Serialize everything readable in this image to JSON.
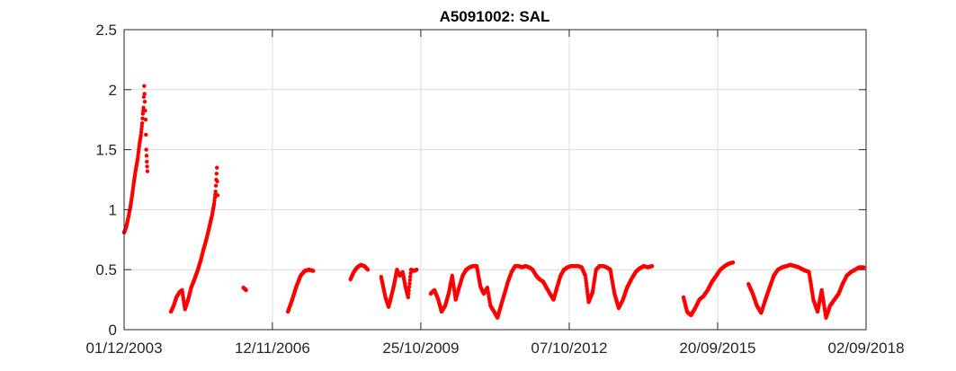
{
  "chart_data": {
    "type": "scatter",
    "title": "A5091002: SAL",
    "xlabel": "",
    "ylabel": "",
    "ylim": [
      0,
      2.5
    ],
    "yticks": [
      0,
      0.5,
      1,
      1.5,
      2,
      2.5
    ],
    "ytick_labels": [
      "0",
      "0.5",
      "1",
      "1.5",
      "2",
      "2.5"
    ],
    "xlim": [
      "2003-12-01",
      "2018-09-02"
    ],
    "xticks": [
      "2003-12-01",
      "2006-11-12",
      "2009-10-25",
      "2012-10-07",
      "2015-09-20",
      "2018-09-02"
    ],
    "xtick_labels": [
      "01/12/2003",
      "12/11/2006",
      "25/10/2009",
      "07/10/2012",
      "20/09/2015",
      "02/09/2018"
    ],
    "grid": true,
    "marker_color": "#ff0000",
    "series": [
      {
        "points": [
          [
            "2003-12-01",
            0.81
          ],
          [
            "2003-12-15",
            0.85
          ],
          [
            "2003-12-29",
            0.92
          ],
          [
            "2004-01-12",
            1.0
          ],
          [
            "2004-01-26",
            1.1
          ],
          [
            "2004-02-09",
            1.22
          ],
          [
            "2004-02-23",
            1.33
          ],
          [
            "2004-03-08",
            1.42
          ],
          [
            "2004-03-22",
            1.55
          ],
          [
            "2004-04-01",
            1.62
          ],
          [
            "2004-04-10",
            1.72
          ],
          [
            "2004-04-15",
            1.8
          ],
          [
            "2004-04-20",
            1.85
          ],
          [
            "2004-04-25",
            2.03
          ],
          [
            "2004-04-29",
            1.9
          ],
          [
            "2004-05-05",
            1.75
          ],
          [
            "2004-05-10",
            1.5
          ],
          [
            "2004-05-14",
            1.4
          ],
          [
            "2004-05-18",
            1.32
          ],
          [
            "2004-11-05",
            0.15
          ],
          [
            "2004-11-25",
            0.2
          ],
          [
            "2004-12-15",
            0.27
          ],
          [
            "2005-01-05",
            0.31
          ],
          [
            "2005-01-25",
            0.33
          ],
          [
            "2005-02-15",
            0.17
          ],
          [
            "2005-03-10",
            0.25
          ],
          [
            "2005-04-01",
            0.35
          ],
          [
            "2005-04-25",
            0.42
          ],
          [
            "2005-05-20",
            0.5
          ],
          [
            "2005-06-10",
            0.58
          ],
          [
            "2005-06-30",
            0.67
          ],
          [
            "2005-07-20",
            0.75
          ],
          [
            "2005-08-10",
            0.85
          ],
          [
            "2005-08-30",
            0.95
          ],
          [
            "2005-09-15",
            1.05
          ],
          [
            "2005-09-25",
            1.15
          ],
          [
            "2005-10-05",
            1.35
          ],
          [
            "2005-10-10",
            1.12
          ],
          [
            "2006-04-15",
            0.35
          ],
          [
            "2006-05-05",
            0.33
          ],
          [
            "2007-03-05",
            0.15
          ],
          [
            "2007-04-05",
            0.25
          ],
          [
            "2007-05-05",
            0.36
          ],
          [
            "2007-06-05",
            0.45
          ],
          [
            "2007-07-05",
            0.49
          ],
          [
            "2007-08-05",
            0.5
          ],
          [
            "2007-09-05",
            0.49
          ],
          [
            "2008-06-01",
            0.42
          ],
          [
            "2008-06-25",
            0.48
          ],
          [
            "2008-07-20",
            0.52
          ],
          [
            "2008-08-15",
            0.54
          ],
          [
            "2008-09-10",
            0.53
          ],
          [
            "2008-10-05",
            0.5
          ],
          [
            "2009-01-10",
            0.44
          ],
          [
            "2009-02-10",
            0.27
          ],
          [
            "2009-03-05",
            0.19
          ],
          [
            "2009-03-25",
            0.28
          ],
          [
            "2009-04-15",
            0.38
          ],
          [
            "2009-05-05",
            0.5
          ],
          [
            "2009-05-25",
            0.45
          ],
          [
            "2009-06-15",
            0.48
          ],
          [
            "2009-07-05",
            0.36
          ],
          [
            "2009-07-25",
            0.27
          ],
          [
            "2009-08-15",
            0.5
          ],
          [
            "2009-09-05",
            0.49
          ],
          [
            "2009-09-25",
            0.5
          ],
          [
            "2010-01-05",
            0.3
          ],
          [
            "2010-02-01",
            0.33
          ],
          [
            "2010-03-01",
            0.25
          ],
          [
            "2010-03-25",
            0.15
          ],
          [
            "2010-04-20",
            0.2
          ],
          [
            "2010-05-15",
            0.3
          ],
          [
            "2010-06-10",
            0.45
          ],
          [
            "2010-07-05",
            0.25
          ],
          [
            "2010-07-30",
            0.35
          ],
          [
            "2010-08-25",
            0.45
          ],
          [
            "2010-09-20",
            0.5
          ],
          [
            "2010-10-15",
            0.52
          ],
          [
            "2010-11-10",
            0.53
          ],
          [
            "2010-12-05",
            0.53
          ],
          [
            "2011-01-01",
            0.36
          ],
          [
            "2011-01-25",
            0.3
          ],
          [
            "2011-02-20",
            0.35
          ],
          [
            "2011-03-15",
            0.2
          ],
          [
            "2011-04-10",
            0.15
          ],
          [
            "2011-05-05",
            0.1
          ],
          [
            "2011-05-30",
            0.2
          ],
          [
            "2011-06-25",
            0.3
          ],
          [
            "2011-07-20",
            0.4
          ],
          [
            "2011-08-15",
            0.48
          ],
          [
            "2011-09-10",
            0.53
          ],
          [
            "2011-10-05",
            0.53
          ],
          [
            "2011-11-01",
            0.52
          ],
          [
            "2011-11-25",
            0.53
          ],
          [
            "2011-12-20",
            0.52
          ],
          [
            "2012-01-15",
            0.5
          ],
          [
            "2012-02-10",
            0.45
          ],
          [
            "2012-03-05",
            0.42
          ],
          [
            "2012-04-01",
            0.4
          ],
          [
            "2012-04-25",
            0.35
          ],
          [
            "2012-05-20",
            0.3
          ],
          [
            "2012-06-15",
            0.25
          ],
          [
            "2012-07-10",
            0.35
          ],
          [
            "2012-08-05",
            0.45
          ],
          [
            "2012-08-30",
            0.5
          ],
          [
            "2012-09-25",
            0.52
          ],
          [
            "2012-10-20",
            0.53
          ],
          [
            "2012-11-15",
            0.53
          ],
          [
            "2012-12-10",
            0.53
          ],
          [
            "2013-01-05",
            0.52
          ],
          [
            "2013-02-01",
            0.45
          ],
          [
            "2013-02-25",
            0.23
          ],
          [
            "2013-03-25",
            0.31
          ],
          [
            "2013-04-20",
            0.5
          ],
          [
            "2013-05-15",
            0.53
          ],
          [
            "2013-06-10",
            0.53
          ],
          [
            "2013-07-05",
            0.52
          ],
          [
            "2013-08-01",
            0.5
          ],
          [
            "2013-09-01",
            0.3
          ],
          [
            "2013-10-01",
            0.18
          ],
          [
            "2013-11-01",
            0.25
          ],
          [
            "2013-12-01",
            0.35
          ],
          [
            "2014-01-01",
            0.42
          ],
          [
            "2014-02-01",
            0.48
          ],
          [
            "2014-03-01",
            0.51
          ],
          [
            "2014-04-01",
            0.53
          ],
          [
            "2014-05-01",
            0.52
          ],
          [
            "2014-06-01",
            0.53
          ],
          [
            "2015-01-15",
            0.27
          ],
          [
            "2015-02-10",
            0.15
          ],
          [
            "2015-03-10",
            0.12
          ],
          [
            "2015-04-10",
            0.18
          ],
          [
            "2015-05-10",
            0.25
          ],
          [
            "2015-06-10",
            0.28
          ],
          [
            "2015-07-10",
            0.33
          ],
          [
            "2015-08-10",
            0.4
          ],
          [
            "2015-09-10",
            0.45
          ],
          [
            "2015-10-10",
            0.5
          ],
          [
            "2015-11-10",
            0.53
          ],
          [
            "2015-12-10",
            0.55
          ],
          [
            "2016-01-10",
            0.56
          ],
          [
            "2016-05-01",
            0.38
          ],
          [
            "2016-06-01",
            0.3
          ],
          [
            "2016-07-01",
            0.2
          ],
          [
            "2016-08-01",
            0.14
          ],
          [
            "2016-09-01",
            0.25
          ],
          [
            "2016-10-01",
            0.35
          ],
          [
            "2016-11-01",
            0.45
          ],
          [
            "2016-12-01",
            0.5
          ],
          [
            "2017-01-01",
            0.52
          ],
          [
            "2017-02-01",
            0.53
          ],
          [
            "2017-03-01",
            0.54
          ],
          [
            "2017-04-01",
            0.53
          ],
          [
            "2017-05-01",
            0.52
          ],
          [
            "2017-06-01",
            0.5
          ],
          [
            "2017-07-15",
            0.48
          ],
          [
            "2017-08-15",
            0.25
          ],
          [
            "2017-09-15",
            0.15
          ],
          [
            "2017-10-15",
            0.33
          ],
          [
            "2017-11-15",
            0.1
          ],
          [
            "2017-12-15",
            0.2
          ],
          [
            "2018-01-15",
            0.25
          ],
          [
            "2018-02-15",
            0.3
          ],
          [
            "2018-03-15",
            0.38
          ],
          [
            "2018-04-15",
            0.45
          ],
          [
            "2018-05-15",
            0.48
          ],
          [
            "2018-06-15",
            0.5
          ],
          [
            "2018-07-15",
            0.52
          ],
          [
            "2018-08-15",
            0.52
          ]
        ]
      }
    ]
  }
}
